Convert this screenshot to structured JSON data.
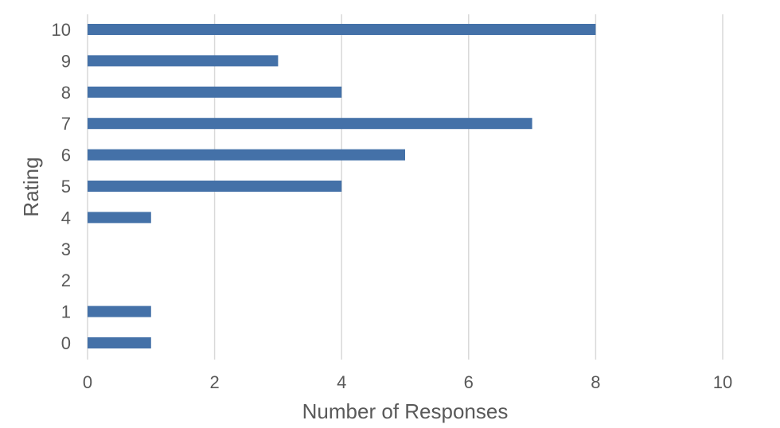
{
  "chart_data": {
    "type": "bar",
    "orientation": "horizontal",
    "title": "",
    "xlabel": "Number of Responses",
    "ylabel": "Rating",
    "categories": [
      "10",
      "9",
      "8",
      "7",
      "6",
      "5",
      "4",
      "3",
      "2",
      "1",
      "0"
    ],
    "values": [
      8,
      3,
      4,
      7,
      5,
      4,
      1,
      0,
      0,
      1,
      1
    ],
    "xlim": [
      0,
      10
    ],
    "xticks": [
      0,
      2,
      4,
      6,
      8,
      10
    ],
    "grid": "vertical",
    "legend": "none"
  },
  "colors": {
    "bar": "#4471A8",
    "grid": "#D9D9D9",
    "text": "#595959"
  }
}
